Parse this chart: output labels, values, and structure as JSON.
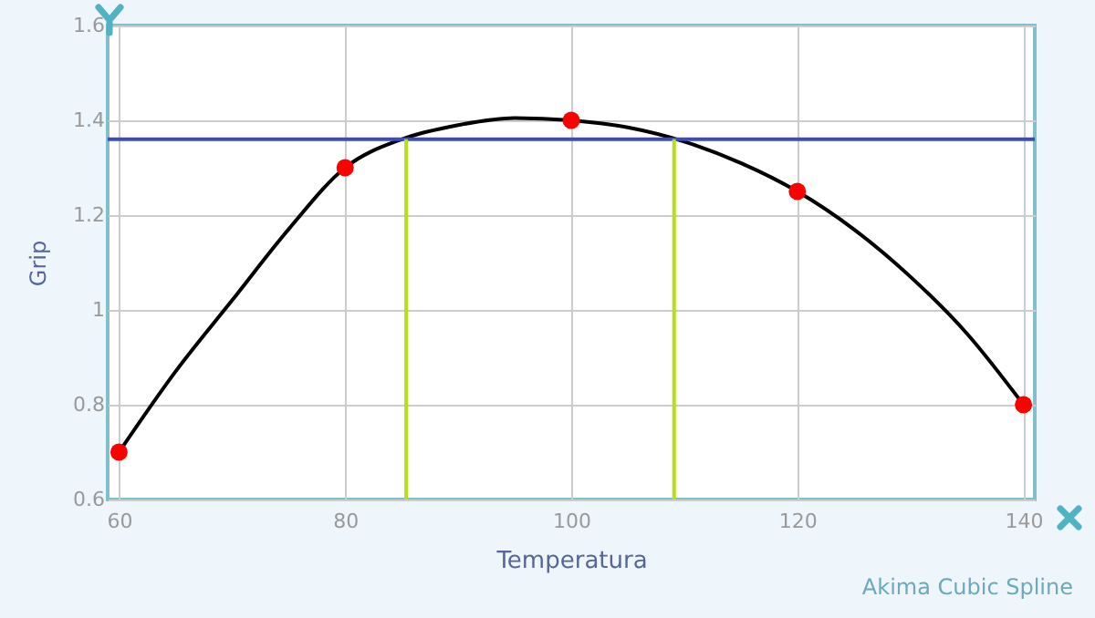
{
  "chart_data": {
    "type": "line",
    "xlabel": "Temperatura",
    "ylabel": "Grip",
    "annotations": [
      "Akima Cubic Spline"
    ],
    "xlim": [
      59,
      141
    ],
    "ylim": [
      0.6,
      1.6
    ],
    "xticks": [
      60,
      80,
      100,
      120,
      140
    ],
    "yticks": [
      0.6,
      0.8,
      1,
      1.2,
      1.4,
      1.6
    ],
    "grid": true,
    "series": [
      {
        "color": "#000000",
        "marker": "none",
        "x": [
          60,
          65,
          70,
          75,
          80,
          85,
          90,
          95,
          100,
          105,
          110,
          115,
          120,
          125,
          130,
          135,
          140
        ],
        "values": [
          0.7,
          0.87,
          1.02,
          1.17,
          1.3,
          1.36,
          1.39,
          1.405,
          1.4,
          1.385,
          1.355,
          1.31,
          1.25,
          1.17,
          1.07,
          0.95,
          0.8
        ]
      },
      {
        "type": "scatter",
        "color": "#ff0000",
        "marker": "circle",
        "x": [
          60,
          80,
          100,
          120,
          140
        ],
        "values": [
          0.7,
          1.3,
          1.4,
          1.25,
          0.8
        ]
      },
      {
        "type": "line",
        "color": "#b4e014",
        "marker": "none",
        "x": [
          85.4,
          85.4
        ],
        "values": [
          0.6,
          1.36
        ]
      },
      {
        "type": "line",
        "color": "#b4e014",
        "marker": "none",
        "x": [
          109.1,
          109.1
        ],
        "values": [
          0.6,
          1.36
        ]
      }
    ],
    "ref_lines": [
      {
        "axis": "y",
        "value": 1.36,
        "color": "#3b4cc0"
      }
    ]
  }
}
